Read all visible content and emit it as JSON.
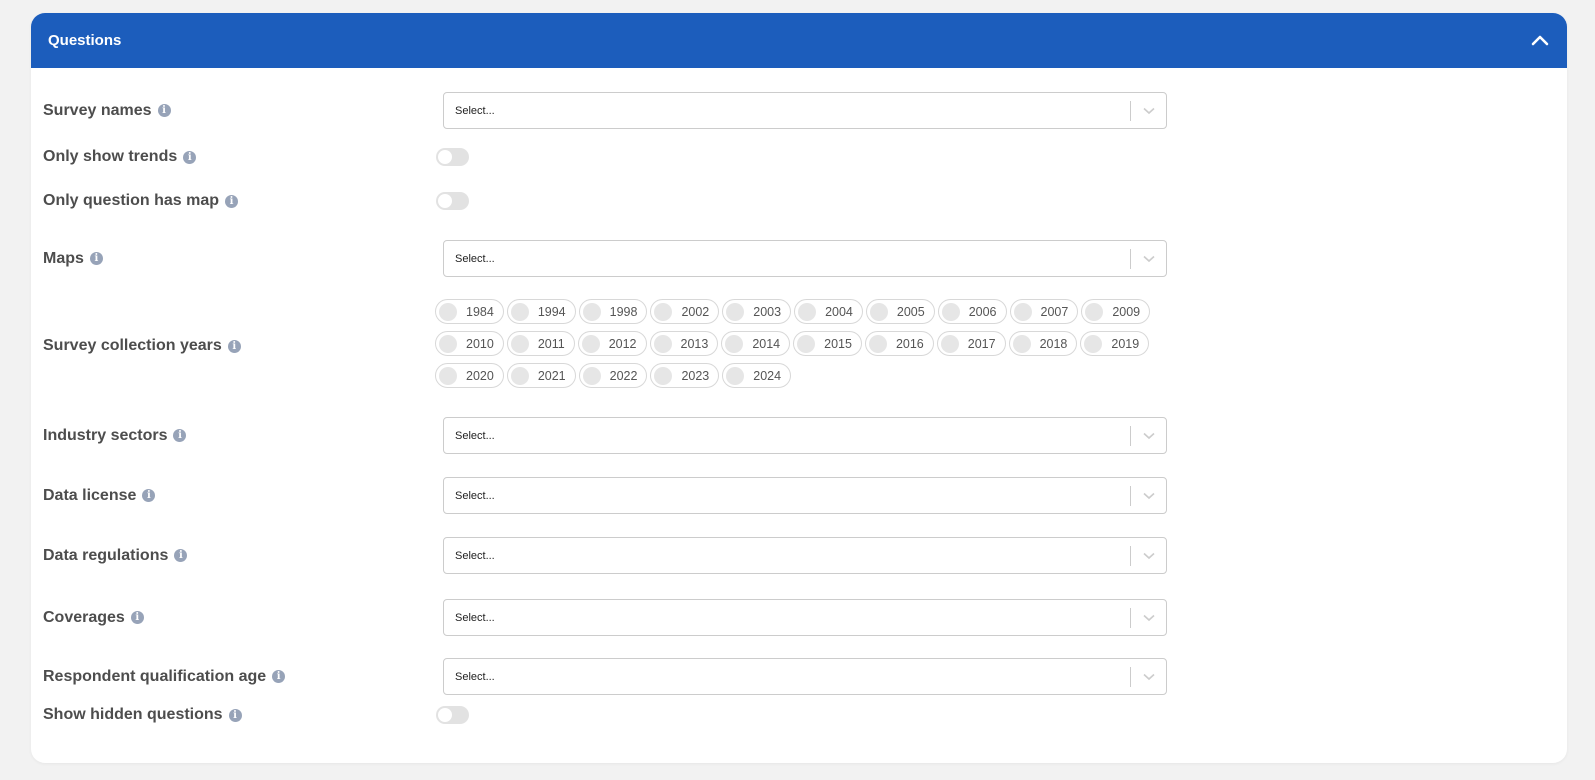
{
  "panel": {
    "title": "Questions",
    "collapse_icon": "chevron-up-icon"
  },
  "colors": {
    "header": "#1c5dbc",
    "info_icon": "#97a3b8"
  },
  "fields": {
    "survey_names": {
      "label": "Survey names",
      "placeholder": "Select..."
    },
    "only_show_trends": {
      "label": "Only show trends",
      "on": false
    },
    "only_question_has_map": {
      "label": "Only question has map",
      "on": false
    },
    "maps": {
      "label": "Maps",
      "placeholder": "Select..."
    },
    "survey_collection_years": {
      "label": "Survey collection years",
      "years": [
        "1984",
        "1994",
        "1998",
        "2002",
        "2003",
        "2004",
        "2005",
        "2006",
        "2007",
        "2009",
        "2010",
        "2011",
        "2012",
        "2013",
        "2014",
        "2015",
        "2016",
        "2017",
        "2018",
        "2019",
        "2020",
        "2021",
        "2022",
        "2023",
        "2024"
      ]
    },
    "industry_sectors": {
      "label": "Industry sectors",
      "placeholder": "Select..."
    },
    "data_license": {
      "label": "Data license",
      "placeholder": "Select..."
    },
    "data_regulations": {
      "label": "Data regulations",
      "placeholder": "Select..."
    },
    "coverages": {
      "label": "Coverages",
      "placeholder": "Select..."
    },
    "respondent_qualification_age": {
      "label": "Respondent qualification age",
      "placeholder": "Select..."
    },
    "show_hidden_questions": {
      "label": "Show hidden questions",
      "on": false
    }
  }
}
